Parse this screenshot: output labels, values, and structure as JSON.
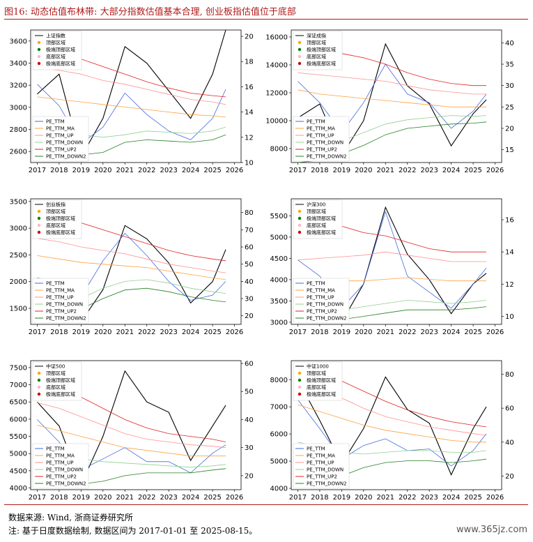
{
  "figure": {
    "title": "图16:  动态估值布林带: 大部分指数估值基本合理, 创业板指估值位于底部",
    "source": "数据来源: Wind, 浙商证券研究所",
    "note": "注: 基于日度数据绘制, 数据区间为 2017-01-01 至 2025-08-15。",
    "watermark": "www.365jz.com"
  },
  "colors": {
    "price": "#000000",
    "pe": "#4169e1",
    "ma": "#ffa040",
    "up": "#ff9090",
    "down": "#90d090",
    "up2": "#e02020",
    "down2": "#208020",
    "top_zone": "#ffa500",
    "extreme_top": "#008000",
    "bottom_zone": "#ffb6c1",
    "extreme_bottom": "#cc0000",
    "title": "#b01818"
  },
  "chart_data": [
    {
      "type": "line",
      "index": "上证指数",
      "x": [
        2017,
        2018,
        2019,
        2020,
        2021,
        2022,
        2023,
        2024,
        2025,
        2025.6
      ],
      "xticks": [
        "2017",
        "2018",
        "2019",
        "2020",
        "2021",
        "2022",
        "2023",
        "2024",
        "2025",
        "2026"
      ],
      "ylim_left": [
        2500,
        3700
      ],
      "yticks_left": [
        2600,
        2800,
        3000,
        3200,
        3400,
        3600
      ],
      "ylim_right": [
        10,
        20.5
      ],
      "yticks_right": [
        10,
        12,
        14,
        16,
        18,
        20
      ],
      "legend_top": [
        "上证指数",
        "顶部区域",
        "极端顶部区域",
        "底部区域",
        "极端底部区域"
      ],
      "legend_bottom": [
        "PE_TTM",
        "PE_TTM_MA",
        "PE_TTM_UP",
        "PE_TTM_DOWN",
        "PE_TTM_UP2",
        "PE_TTM_DOWN2"
      ],
      "series": [
        {
          "key": "price",
          "axis": "left",
          "values": [
            3120,
            3300,
            2550,
            2900,
            3550,
            3400,
            3150,
            2900,
            3300,
            3700
          ]
        },
        {
          "key": "pe",
          "axis": "right",
          "values": [
            16.2,
            14.5,
            11.5,
            12.8,
            15.5,
            13.8,
            12.5,
            11.8,
            13.5,
            15.8
          ]
        },
        {
          "key": "ma",
          "axis": "right",
          "values": [
            15.2,
            15.0,
            14.8,
            14.6,
            14.4,
            14.2,
            14.0,
            13.8,
            13.7,
            13.6
          ]
        },
        {
          "key": "up",
          "axis": "right",
          "values": [
            17.5,
            17.3,
            17.0,
            16.5,
            16.2,
            15.8,
            15.4,
            15.0,
            14.8,
            14.6
          ]
        },
        {
          "key": "down",
          "axis": "right",
          "values": [
            12.8,
            12.5,
            12.2,
            12.0,
            12.2,
            12.5,
            12.4,
            12.3,
            12.5,
            12.8
          ]
        },
        {
          "key": "up2",
          "axis": "right",
          "values": [
            19.0,
            18.8,
            18.2,
            17.6,
            17.0,
            16.4,
            15.9,
            15.5,
            15.3,
            15.2
          ]
        },
        {
          "key": "down2",
          "axis": "right",
          "values": [
            11.2,
            10.8,
            10.6,
            10.8,
            11.6,
            11.8,
            11.7,
            11.6,
            11.8,
            12.2
          ]
        }
      ]
    },
    {
      "type": "line",
      "index": "深证成指",
      "x": [
        2017,
        2018,
        2019,
        2020,
        2021,
        2022,
        2023,
        2024,
        2025,
        2025.6
      ],
      "xticks": [
        "2017",
        "2018",
        "2019",
        "2020",
        "2021",
        "2022",
        "2023",
        "2024",
        "2025",
        "2026"
      ],
      "ylim_left": [
        7000,
        16500
      ],
      "yticks_left": [
        8000,
        10000,
        12000,
        14000,
        16000
      ],
      "ylim_right": [
        12,
        43
      ],
      "yticks_right": [
        15,
        20,
        25,
        30,
        35,
        40
      ],
      "legend_top": [
        "深证成指",
        "顶部区域",
        "极端顶部区域",
        "底部区域",
        "极端底部区域"
      ],
      "legend_bottom": [
        "PE_TTM",
        "PE_TTM_MA",
        "PE_TTM_UP",
        "PE_TTM_DOWN",
        "PE_TTM_UP2",
        "PE_TTM_DOWN2"
      ],
      "series": [
        {
          "key": "price",
          "axis": "left",
          "values": [
            10200,
            11200,
            7500,
            10000,
            15500,
            12500,
            11200,
            8200,
            10500,
            11500
          ]
        },
        {
          "key": "pe",
          "axis": "right",
          "values": [
            31,
            26,
            19,
            26,
            35,
            28,
            26,
            20,
            24,
            28
          ]
        },
        {
          "key": "ma",
          "axis": "right",
          "values": [
            29,
            28,
            27.5,
            27,
            26.5,
            26,
            25.5,
            25,
            25,
            25
          ]
        },
        {
          "key": "up",
          "axis": "right",
          "values": [
            33,
            32.5,
            32,
            31.5,
            31,
            30,
            29,
            28.5,
            28,
            28
          ]
        },
        {
          "key": "down",
          "axis": "right",
          "values": [
            12.5,
            14,
            17,
            19,
            21,
            22,
            22.5,
            23,
            22.8,
            23
          ]
        },
        {
          "key": "up2",
          "axis": "right",
          "values": [
            40,
            39,
            37.5,
            36.5,
            35,
            33,
            31.5,
            30.5,
            30,
            30
          ]
        },
        {
          "key": "down2",
          "axis": "right",
          "values": [
            12,
            12.5,
            14,
            16,
            18.5,
            20,
            20.5,
            21,
            21.2,
            21.5
          ]
        }
      ]
    },
    {
      "type": "line",
      "index": "创业板指",
      "x": [
        2017,
        2018,
        2019,
        2020,
        2021,
        2022,
        2023,
        2024,
        2025,
        2025.6
      ],
      "xticks": [
        "2017",
        "2018",
        "2019",
        "2020",
        "2021",
        "2022",
        "2023",
        "2024",
        "2025",
        "2026"
      ],
      "ylim_left": [
        1200,
        3550
      ],
      "yticks_left": [
        1500,
        2000,
        2500,
        3000,
        3500
      ],
      "ylim_right": [
        15,
        88
      ],
      "yticks_right": [
        20,
        30,
        40,
        50,
        60,
        70,
        80
      ],
      "legend_top": [
        "创业板指",
        "顶部区域",
        "极端顶部区域",
        "底部区域",
        "极端底部区域"
      ],
      "legend_bottom": [
        "PE_TTM",
        "PE_TTM_MA",
        "PE_TTM_UP",
        "PE_TTM_DOWN",
        "PE_TTM_UP2",
        "PE_TTM_DOWN2"
      ],
      "series": [
        {
          "key": "price",
          "axis": "left",
          "values": [
            1950,
            1800,
            1250,
            1850,
            3050,
            2800,
            2350,
            1600,
            2000,
            2600
          ]
        },
        {
          "key": "pe",
          "axis": "right",
          "values": [
            42,
            40,
            31,
            52,
            68,
            55,
            40,
            29,
            32,
            40
          ]
        },
        {
          "key": "ma",
          "axis": "right",
          "values": [
            55,
            53,
            51,
            50,
            49,
            48,
            46,
            44,
            42,
            41
          ]
        },
        {
          "key": "up",
          "axis": "right",
          "values": [
            65,
            63,
            60,
            58,
            56,
            53,
            50,
            48,
            46,
            45
          ]
        },
        {
          "key": "down",
          "axis": "right",
          "values": [
            18,
            22,
            30,
            36,
            40,
            41,
            39,
            36,
            34,
            33
          ]
        },
        {
          "key": "up2",
          "axis": "right",
          "values": [
            80,
            78,
            74,
            70,
            66,
            62,
            58,
            55,
            53,
            52
          ]
        },
        {
          "key": "down2",
          "axis": "right",
          "values": [
            16,
            18,
            24,
            30,
            35,
            36,
            34,
            31,
            29,
            28
          ]
        }
      ]
    },
    {
      "type": "line",
      "index": "沪深300",
      "x": [
        2017,
        2018,
        2019,
        2020,
        2021,
        2022,
        2023,
        2024,
        2025,
        2025.6
      ],
      "xticks": [
        "2017",
        "2018",
        "2019",
        "2020",
        "2021",
        "2022",
        "2023",
        "2024",
        "2025",
        "2026"
      ],
      "ylim_left": [
        2950,
        5900
      ],
      "yticks_left": [
        3000,
        3500,
        4000,
        4500,
        5000,
        5500
      ],
      "ylim_right": [
        9.5,
        17.3
      ],
      "yticks_right": [
        10,
        12,
        14,
        16
      ],
      "legend_top": [
        "沪深300",
        "顶部区域",
        "极端顶部区域",
        "底部区域",
        "极端底部区域"
      ],
      "legend_bottom": [
        "PE_TTM",
        "PE_TTM_MA",
        "PE_TTM_UP",
        "PE_TTM_DOWN",
        "PE_TTM_UP2",
        "PE_TTM_DOWN2"
      ],
      "series": [
        {
          "key": "price",
          "axis": "left",
          "values": [
            3350,
            4000,
            3000,
            3900,
            5700,
            4600,
            4000,
            3200,
            3900,
            4150
          ]
        },
        {
          "key": "pe",
          "axis": "right",
          "values": [
            13.5,
            12.5,
            10.5,
            12.0,
            16.5,
            12.5,
            11.5,
            10.5,
            12.0,
            13.0
          ]
        },
        {
          "key": "ma",
          "axis": "right",
          "values": [
            12.3,
            12.3,
            12.2,
            12.2,
            12.3,
            12.4,
            12.3,
            12.2,
            12.2,
            12.2
          ]
        },
        {
          "key": "up",
          "axis": "right",
          "values": [
            13.5,
            13.6,
            13.7,
            13.8,
            14.0,
            13.8,
            13.6,
            13.4,
            13.4,
            13.4
          ]
        },
        {
          "key": "down",
          "axis": "right",
          "values": [
            9.8,
            10.2,
            10.4,
            10.6,
            10.8,
            11.0,
            10.9,
            10.8,
            10.9,
            11.0
          ]
        },
        {
          "key": "up2",
          "axis": "right",
          "values": [
            16.5,
            16.2,
            15.6,
            15.2,
            15.0,
            14.6,
            14.2,
            14.0,
            14.0,
            14.0
          ]
        },
        {
          "key": "down2",
          "axis": "right",
          "values": [
            9.7,
            9.7,
            9.8,
            10.0,
            10.2,
            10.4,
            10.4,
            10.4,
            10.5,
            10.6
          ]
        }
      ]
    },
    {
      "type": "line",
      "index": "中证500",
      "x": [
        2017,
        2018,
        2019,
        2020,
        2021,
        2022,
        2023,
        2024,
        2025,
        2025.6
      ],
      "xticks": [
        "2017",
        "2018",
        "2019",
        "2020",
        "2021",
        "2022",
        "2023",
        "2024",
        "2025",
        "2026"
      ],
      "ylim_left": [
        3950,
        7700
      ],
      "yticks_left": [
        4000,
        4500,
        5000,
        5500,
        6000,
        6500,
        7000,
        7500
      ],
      "ylim_right": [
        15,
        61
      ],
      "yticks_right": [
        20,
        30,
        40,
        50,
        60
      ],
      "legend_top": [
        "中证500",
        "顶部区域",
        "极端顶部区域",
        "底部区域",
        "极端底部区域"
      ],
      "legend_bottom": [
        "PE_TTM",
        "PE_TTM_MA",
        "PE_TTM_UP",
        "PE_TTM_DOWN",
        "PE_TTM_UP2",
        "PE_TTM_DOWN2"
      ],
      "series": [
        {
          "key": "price",
          "axis": "left",
          "values": [
            6500,
            5800,
            4100,
            5500,
            7400,
            6500,
            6200,
            4800,
            5800,
            6400
          ]
        },
        {
          "key": "pe",
          "axis": "right",
          "values": [
            40,
            32,
            22,
            26,
            30,
            25,
            25,
            21,
            28,
            31
          ]
        },
        {
          "key": "ma",
          "axis": "right",
          "values": [
            38,
            36,
            34,
            32,
            30,
            29,
            28,
            27,
            27,
            27
          ]
        },
        {
          "key": "up",
          "axis": "right",
          "values": [
            46,
            44,
            41,
            38,
            35,
            33,
            32,
            31,
            30.5,
            30
          ]
        },
        {
          "key": "down",
          "axis": "right",
          "values": [
            30,
            28,
            26,
            25,
            24.5,
            24,
            23.5,
            23,
            23.5,
            24
          ]
        },
        {
          "key": "up2",
          "axis": "right",
          "values": [
            56,
            52,
            48,
            44,
            40,
            37,
            35,
            34,
            33,
            32
          ]
        },
        {
          "key": "down2",
          "axis": "right",
          "values": [
            22,
            19,
            17,
            18,
            20,
            21,
            21,
            21,
            22,
            22.5
          ]
        }
      ]
    },
    {
      "type": "line",
      "index": "中证1000",
      "x": [
        2017,
        2018,
        2019,
        2020,
        2021,
        2022,
        2023,
        2024,
        2025,
        2025.6
      ],
      "xticks": [
        "2017",
        "2018",
        "2019",
        "2020",
        "2021",
        "2022",
        "2023",
        "2024",
        "2025",
        "2026"
      ],
      "ylim_left": [
        3950,
        8700
      ],
      "yticks_left": [
        4000,
        5000,
        6000,
        7000,
        8000
      ],
      "ylim_right": [
        12,
        88
      ],
      "yticks_right": [
        20,
        40,
        60,
        80
      ],
      "legend_top": [
        "中证1000",
        "顶部区域",
        "极端顶部区域",
        "底部区域",
        "极端底部区域"
      ],
      "legend_bottom": [
        "PE_TTM",
        "PE_TTM_MA",
        "PE_TTM_UP",
        "PE_TTM_DOWN",
        "PE_TTM_UP2",
        "PE_TTM_DOWN2"
      ],
      "series": [
        {
          "key": "price",
          "axis": "left",
          "values": [
            8000,
            6500,
            4900,
            6200,
            8100,
            6900,
            6400,
            4500,
            6200,
            7000
          ]
        },
        {
          "key": "pe",
          "axis": "right",
          "values": [
            65,
            48,
            30,
            38,
            42,
            35,
            36,
            26,
            35,
            45
          ]
        },
        {
          "key": "ma",
          "axis": "right",
          "values": [
            62,
            58,
            54,
            50,
            47,
            45,
            43,
            41,
            40,
            40
          ]
        },
        {
          "key": "up",
          "axis": "right",
          "values": [
            75,
            72,
            66,
            60,
            55,
            52,
            49,
            47,
            45,
            44
          ]
        },
        {
          "key": "down",
          "axis": "right",
          "values": [
            40,
            37,
            34,
            33,
            34,
            35,
            35,
            34,
            34,
            35
          ]
        },
        {
          "key": "up2",
          "axis": "right",
          "values": [
            85,
            82,
            76,
            70,
            64,
            59,
            55,
            52,
            50,
            49
          ]
        },
        {
          "key": "down2",
          "axis": "right",
          "values": [
            15,
            16,
            20,
            25,
            28,
            29,
            29,
            28,
            29,
            30
          ]
        }
      ]
    }
  ]
}
